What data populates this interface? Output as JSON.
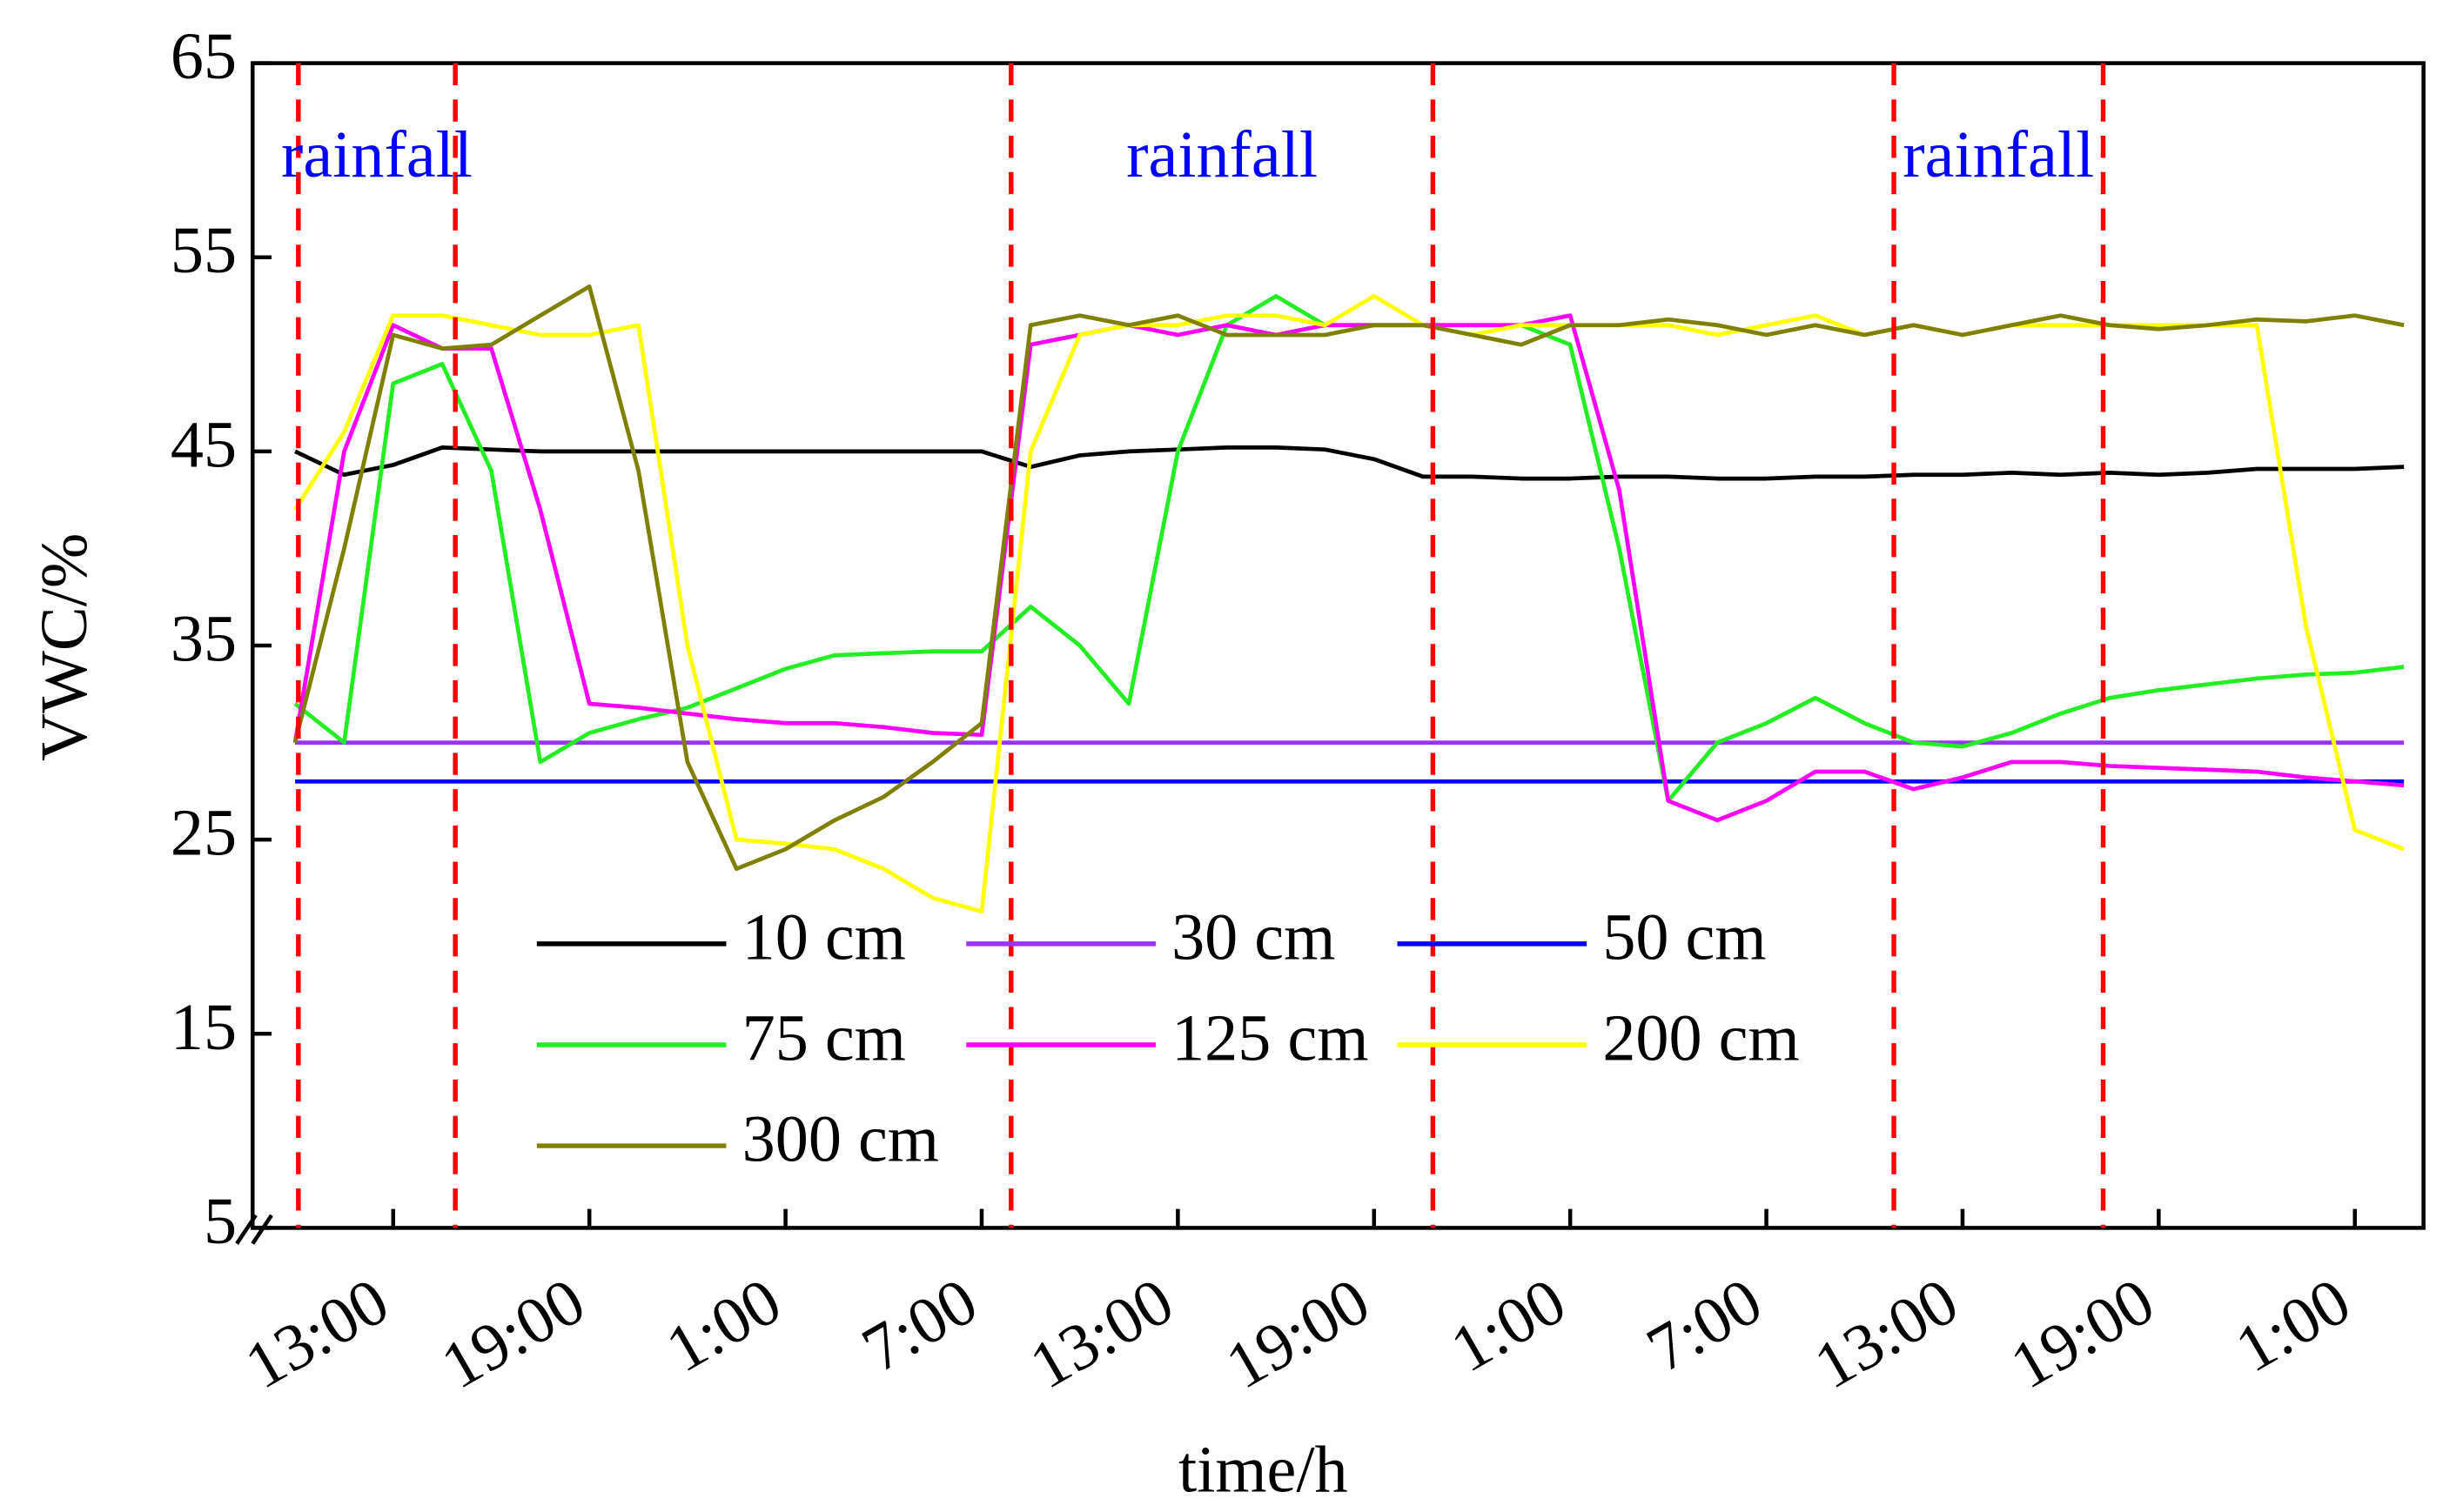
{
  "chart_data": {
    "type": "line",
    "x_label": "time/h",
    "y_label": "VWC/%",
    "xlim": [
      -0.3,
      66.1
    ],
    "ylim": [
      5,
      65
    ],
    "yticks": [
      5,
      15,
      25,
      35,
      45,
      55,
      65
    ],
    "xticks": [
      {
        "value": 4,
        "label": "13:00"
      },
      {
        "value": 10,
        "label": "19:00"
      },
      {
        "value": 16,
        "label": "1:00"
      },
      {
        "value": 22,
        "label": "7:00"
      },
      {
        "value": 28,
        "label": "13:00"
      },
      {
        "value": 34,
        "label": "19:00"
      },
      {
        "value": 40,
        "label": "1:00"
      },
      {
        "value": 46,
        "label": "7:00"
      },
      {
        "value": 52,
        "label": "13:00"
      },
      {
        "value": 58,
        "label": "19:00"
      },
      {
        "value": 64,
        "label": "1:00"
      }
    ],
    "rainfall_periods": [
      {
        "label": "rainfall",
        "start": 1.1,
        "end": 5.9,
        "color": "#ff0000"
      },
      {
        "label": "rainfall",
        "start": 22.9,
        "end": 35.8,
        "color": "#ff0000"
      },
      {
        "label": "rainfall",
        "start": 49.9,
        "end": 56.3,
        "color": "#ff0000"
      }
    ],
    "x": [
      1,
      2.5,
      4,
      5.5,
      7,
      8.5,
      10,
      11.5,
      13,
      14.5,
      16,
      17.5,
      19,
      20.5,
      22,
      23.5,
      25,
      26.5,
      28,
      29.5,
      31,
      32.5,
      34,
      35.5,
      37,
      38.5,
      40,
      41.5,
      43,
      44.5,
      46,
      47.5,
      49,
      50.5,
      52,
      53.5,
      55,
      56.5,
      58,
      59.5,
      61,
      62.5,
      64,
      65.5
    ],
    "series": [
      {
        "name": "10 cm",
        "color": "#000000",
        "values": [
          45,
          43.8,
          44.3,
          45.2,
          45.1,
          45,
          45,
          45,
          45,
          45,
          45,
          45,
          45,
          45,
          45,
          44.2,
          44.8,
          45,
          45.1,
          45.2,
          45.2,
          45.1,
          44.6,
          43.7,
          43.7,
          43.6,
          43.6,
          43.7,
          43.7,
          43.6,
          43.6,
          43.7,
          43.7,
          43.8,
          43.8,
          43.9,
          43.8,
          43.9,
          43.8,
          43.9,
          44.1,
          44.1,
          44.1,
          44.2
        ]
      },
      {
        "name": "30 cm",
        "color": "#9933ff",
        "values": [
          30,
          30,
          30,
          30,
          30,
          30,
          30,
          30,
          30,
          30,
          30,
          30,
          30,
          30,
          30,
          30,
          30,
          30,
          30,
          30,
          30,
          30,
          30,
          30,
          30,
          30,
          30,
          30,
          30,
          30,
          30,
          30,
          30,
          30,
          30,
          30,
          30,
          30,
          30,
          30,
          30,
          30,
          30,
          30
        ]
      },
      {
        "name": "50 cm",
        "color": "#0000ff",
        "values": [
          28,
          28,
          28,
          28,
          28,
          28,
          28,
          28,
          28,
          28,
          28,
          28,
          28,
          28,
          28,
          28,
          28,
          28,
          28,
          28,
          28,
          28,
          28,
          28,
          28,
          28,
          28,
          28,
          28,
          28,
          28,
          28,
          28,
          28,
          28,
          28,
          28,
          28,
          28,
          28,
          28,
          28,
          28,
          28
        ]
      },
      {
        "name": "75 cm",
        "color": "#22ee22",
        "values": [
          32,
          30,
          48.5,
          49.5,
          44,
          29,
          30.5,
          31.2,
          31.8,
          32.8,
          33.8,
          34.5,
          34.6,
          34.7,
          34.7,
          37,
          35,
          32,
          45,
          51.5,
          53,
          51.5,
          51.5,
          51.5,
          51.5,
          51.5,
          50.5,
          40,
          27,
          30,
          31,
          32.3,
          31,
          30,
          29.8,
          30.5,
          31.5,
          32.3,
          32.7,
          33,
          33.3,
          33.5,
          33.6,
          33.9
        ]
      },
      {
        "name": "125 cm",
        "color": "#ff00ff",
        "values": [
          30,
          45,
          51.5,
          50.3,
          50.3,
          42,
          32,
          31.8,
          31.5,
          31.2,
          31,
          31,
          30.8,
          30.5,
          30.4,
          50.5,
          51,
          51.5,
          51,
          51.5,
          51,
          51.5,
          51.5,
          51.5,
          51.5,
          51.5,
          52,
          43,
          27,
          26,
          27,
          28.5,
          28.5,
          27.6,
          28.2,
          29,
          29,
          28.8,
          28.7,
          28.6,
          28.5,
          28.2,
          28,
          27.8
        ]
      },
      {
        "name": "200 cm",
        "color": "#ffff00",
        "values": [
          42,
          46,
          52,
          52,
          51.5,
          51,
          51,
          51.5,
          35,
          25,
          24.8,
          24.5,
          23.5,
          22,
          21.3,
          45,
          51,
          51.5,
          51.5,
          52,
          52,
          51.5,
          53,
          51.5,
          51,
          51.5,
          51.5,
          51.5,
          51.5,
          51,
          51.5,
          52,
          51,
          51.5,
          51,
          51.5,
          51.5,
          51.5,
          51.5,
          51.5,
          51.5,
          36,
          25.5,
          24.5
        ]
      },
      {
        "name": "300 cm",
        "color": "#808000",
        "values": [
          30,
          40,
          51,
          50.3,
          50.5,
          52,
          53.5,
          44,
          29,
          23.5,
          24.5,
          26,
          27.2,
          29,
          31,
          51.5,
          52,
          51.5,
          52,
          51,
          51,
          51,
          51.5,
          51.5,
          51,
          50.5,
          51.5,
          51.5,
          51.8,
          51.5,
          51,
          51.5,
          51,
          51.5,
          51,
          51.5,
          52,
          51.5,
          51.3,
          51.5,
          51.8,
          51.7,
          52,
          51.5
        ]
      }
    ]
  }
}
